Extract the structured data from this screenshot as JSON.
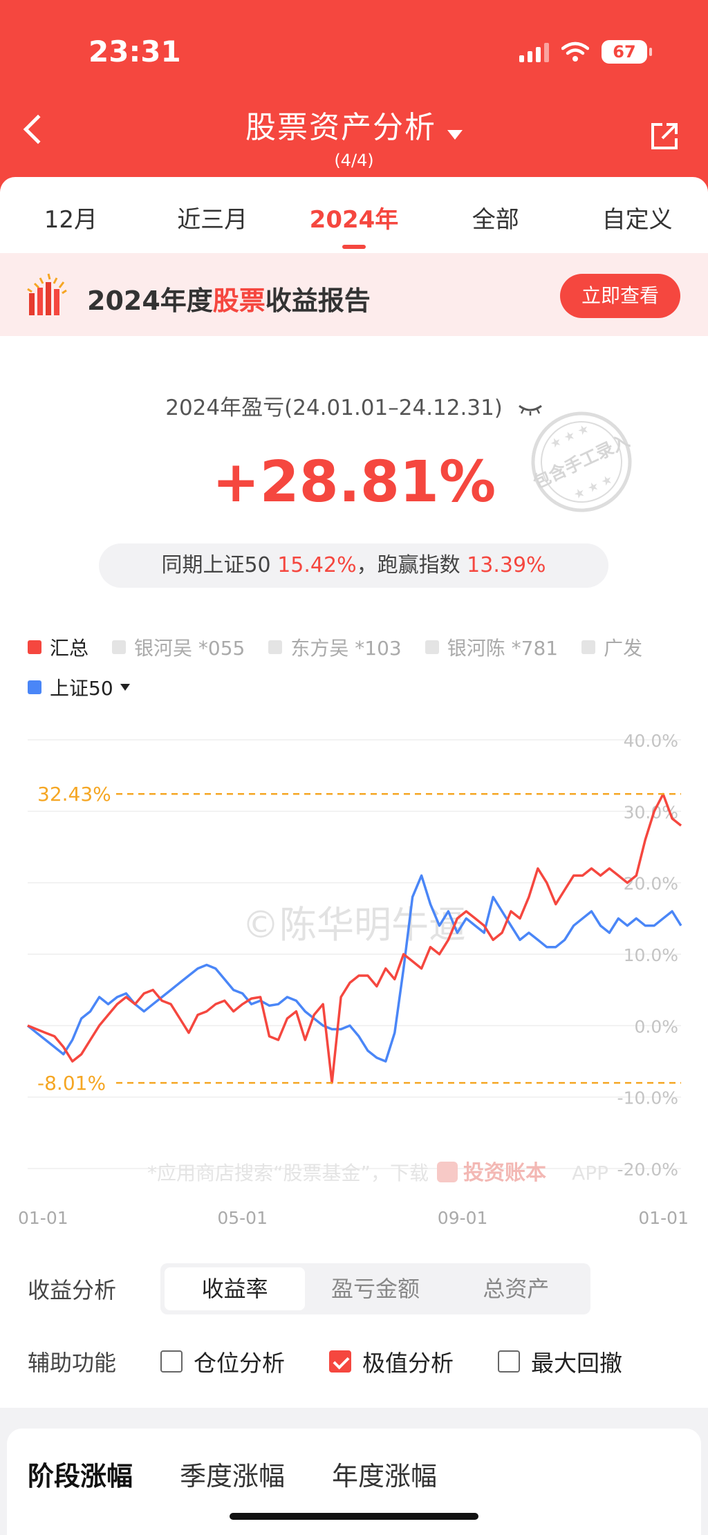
{
  "status": {
    "time": "23:31",
    "battery": "67"
  },
  "nav": {
    "title": "股票资产分析",
    "subtitle": "(4/4)"
  },
  "tabs": [
    "12月",
    "近三月",
    "2024年",
    "全部",
    "自定义"
  ],
  "active_tab": "2024年",
  "banner": {
    "text_pre": "2024年度",
    "text_hl": "股票",
    "text_post": "收益报告",
    "button": "立即查看"
  },
  "summary": {
    "title": "2024年盈亏(24.01.01–24.12.31)",
    "return": "+28.81%",
    "compare_pre": "同期上证50",
    "compare_val": "15.42%",
    "compare_mid": "，跑赢指数",
    "compare_val2": "13.39%",
    "stamp": "包含手工录入"
  },
  "legend": [
    {
      "label": "汇总",
      "on": true,
      "color": "#f5473f"
    },
    {
      "label": "银河吴 *055",
      "on": false
    },
    {
      "label": "东方吴 *103",
      "on": false
    },
    {
      "label": "银河陈 *781",
      "on": false
    },
    {
      "label": "广发",
      "on": false
    },
    {
      "label": "上证50",
      "on": true,
      "color": "#4a86f7"
    }
  ],
  "colors": {
    "accent": "#f5473f",
    "index": "#4a86f7",
    "extreme": "#f5a623"
  },
  "chart_data": {
    "type": "line",
    "x_ticks": [
      "01-01",
      "05-01",
      "09-01",
      "01-01"
    ],
    "y_ticks": [
      "40.0%",
      "30.0%",
      "20.0%",
      "10.0%",
      "0.0%",
      "-10.0%",
      "-20.0%"
    ],
    "ylim": [
      -20,
      40
    ],
    "annotations": {
      "max": "32.43%",
      "min": "-8.01%",
      "max_value": 32.43,
      "min_value": -8.01
    },
    "watermark": "©陈华明牛逼",
    "footer_note": "*应用商店搜索“股票基金”，下载",
    "footer_brand": "投资账本",
    "footer_app": "APP",
    "series": [
      {
        "name": "汇总",
        "color": "#f5473f",
        "x": [
          0,
          5,
          10,
          15,
          20,
          25,
          30,
          35,
          40,
          45,
          50,
          55,
          60,
          65,
          70,
          75,
          80,
          85,
          90,
          95,
          100,
          105,
          110,
          115,
          120,
          125,
          130,
          135,
          140,
          145,
          150,
          155,
          160,
          165,
          170,
          175,
          180,
          185,
          190,
          195,
          200,
          205,
          210,
          215,
          220,
          225,
          230,
          235,
          240,
          245,
          250,
          255,
          260,
          265,
          270,
          275,
          280,
          285,
          290,
          295,
          300,
          305,
          310,
          315,
          320,
          325,
          330,
          335,
          340,
          345,
          350,
          355,
          360,
          365
        ],
        "y": [
          0,
          -0.5,
          -1,
          -1.5,
          -3,
          -5,
          -4,
          -2,
          0,
          1.5,
          3,
          4,
          3,
          4.5,
          5,
          3.5,
          3,
          1,
          -1,
          1.5,
          2,
          3,
          3.5,
          2,
          3,
          3.8,
          4,
          -1.5,
          -2,
          1,
          2,
          -2,
          1.5,
          3,
          -8,
          4,
          6,
          7,
          7,
          5.5,
          8,
          6.5,
          10,
          9,
          8,
          11,
          10,
          12,
          15,
          16,
          15,
          14,
          12,
          13,
          16,
          15,
          18,
          22,
          20,
          17,
          19,
          21,
          21,
          22,
          21,
          22,
          21,
          20,
          21,
          26,
          30,
          32.4,
          29,
          28
        ]
      },
      {
        "name": "上证50",
        "color": "#4a86f7",
        "x": [
          0,
          5,
          10,
          15,
          20,
          25,
          30,
          35,
          40,
          45,
          50,
          55,
          60,
          65,
          70,
          75,
          80,
          85,
          90,
          95,
          100,
          105,
          110,
          115,
          120,
          125,
          130,
          135,
          140,
          145,
          150,
          155,
          160,
          165,
          170,
          175,
          180,
          185,
          190,
          195,
          200,
          205,
          210,
          215,
          220,
          225,
          230,
          235,
          240,
          245,
          250,
          255,
          260,
          265,
          270,
          275,
          280,
          285,
          290,
          295,
          300,
          305,
          310,
          315,
          320,
          325,
          330,
          335,
          340,
          345,
          350,
          355,
          360,
          365
        ],
        "y": [
          0,
          -1,
          -2,
          -3,
          -4,
          -2,
          1,
          2,
          4,
          3,
          4,
          4.5,
          3,
          2,
          3,
          4,
          5,
          6,
          7,
          8,
          8.5,
          8,
          6.5,
          5,
          4.5,
          3,
          3.5,
          2.8,
          3,
          4,
          3.5,
          2,
          1,
          0,
          -0.5,
          -0.5,
          0,
          -1.5,
          -3.5,
          -4.5,
          -5,
          -1,
          8,
          18,
          21,
          17,
          14,
          16,
          13,
          15,
          14,
          13,
          18,
          16,
          14,
          12,
          13,
          12,
          11,
          11,
          12,
          14,
          15,
          16,
          14,
          13,
          15,
          14,
          15,
          14,
          14,
          15,
          16,
          14
        ]
      }
    ]
  },
  "analysis": {
    "label": "收益分析",
    "options": [
      "收益率",
      "盈亏金额",
      "总资产"
    ],
    "active": "收益率"
  },
  "aux": {
    "label": "辅助功能",
    "items": [
      {
        "label": "仓位分析",
        "checked": false
      },
      {
        "label": "极值分析",
        "checked": true
      },
      {
        "label": "最大回撤",
        "checked": false
      }
    ]
  },
  "bottom_tabs": [
    "阶段涨幅",
    "季度涨幅",
    "年度涨幅"
  ]
}
